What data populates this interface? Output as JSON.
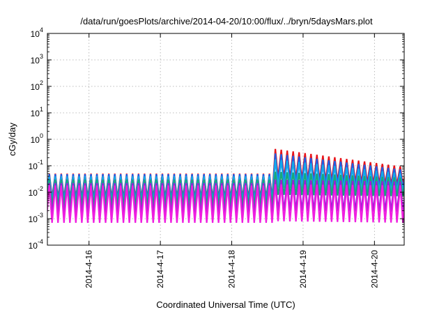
{
  "chart_data": {
    "type": "line",
    "title": "/data/run/goesPlots/archive/2014-04-20/10:00/flux/../bryn/5daysMars.plot",
    "xlabel": "Coordinated Universal Time (UTC)",
    "ylabel": "cGy/day",
    "y_scale": "log",
    "ylim": [
      0.0001,
      10000
    ],
    "y_ticks": [
      {
        "base": "10",
        "exp": "-4",
        "value": 0.0001
      },
      {
        "base": "10",
        "exp": "-3",
        "value": 0.001
      },
      {
        "base": "10",
        "exp": "-2",
        "value": 0.01
      },
      {
        "base": "10",
        "exp": "-1",
        "value": 0.1
      },
      {
        "base": "10",
        "exp": "0",
        "value": 1
      },
      {
        "base": "10",
        "exp": "1",
        "value": 10
      },
      {
        "base": "10",
        "exp": "2",
        "value": 100
      },
      {
        "base": "10",
        "exp": "3",
        "value": 1000
      },
      {
        "base": "10",
        "exp": "4",
        "value": 10000
      }
    ],
    "xlim": [
      "2014-04-15 10:00",
      "2014-04-20 10:00"
    ],
    "x_ticks": [
      {
        "label": "2014-4-16",
        "date": "2014-04-16 00:00"
      },
      {
        "label": "2014-4-17",
        "date": "2014-04-17 00:00"
      },
      {
        "label": "2014-4-18",
        "date": "2014-04-18 00:00"
      },
      {
        "label": "2014-4-19",
        "date": "2014-04-19 00:00"
      },
      {
        "label": "2014-4-20",
        "date": "2014-04-20 00:00"
      }
    ],
    "grid": true,
    "sawtooth_period_hours": 2,
    "event_onset": "2014-04-18 13:40",
    "series": [
      {
        "color": "#e8141a",
        "before_event": {
          "peak": 0.05,
          "trough": 0.006
        },
        "after_event": {
          "peak": 0.45,
          "trough": 0.035,
          "peak_end": 0.09,
          "trough_end": 0.018
        }
      },
      {
        "color": "#1f5fe6",
        "before_event": {
          "peak": 0.048,
          "trough": 0.005
        },
        "after_event": {
          "peak": 0.3,
          "trough": 0.025,
          "peak_end": 0.07,
          "trough_end": 0.014
        }
      },
      {
        "color": "#15a8e8",
        "before_event": {
          "peak": 0.04,
          "trough": 0.004
        },
        "after_event": {
          "peak": 0.18,
          "trough": 0.015,
          "peak_end": 0.05,
          "trough_end": 0.01
        }
      },
      {
        "color": "#1aa878",
        "before_event": {
          "peak": 0.03,
          "trough": 0.003
        },
        "after_event": {
          "peak": 0.06,
          "trough": 0.008,
          "peak_end": 0.035,
          "trough_end": 0.007
        }
      },
      {
        "color": "#9a1fd8",
        "before_event": {
          "peak": 0.022,
          "trough": 0.0015
        },
        "after_event": {
          "peak": 0.03,
          "trough": 0.002,
          "peak_end": 0.025,
          "trough_end": 0.0018
        }
      },
      {
        "color": "#f01ee0",
        "before_event": {
          "peak": 0.018,
          "trough": 0.0007
        },
        "after_event": {
          "peak": 0.02,
          "trough": 0.0008,
          "peak_end": 0.018,
          "trough_end": 0.0007
        }
      }
    ]
  }
}
